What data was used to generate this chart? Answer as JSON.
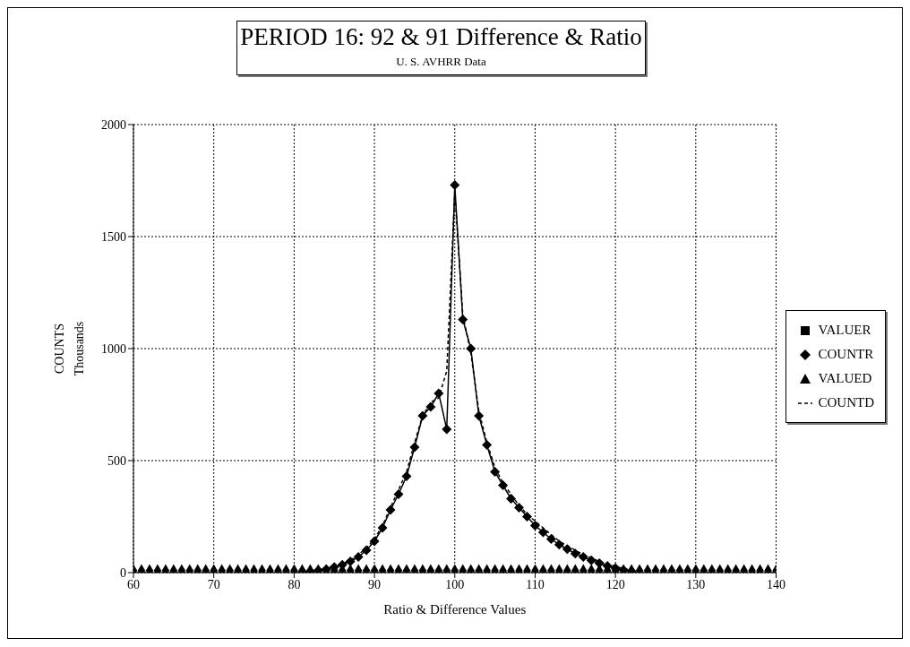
{
  "chart_data": {
    "type": "line",
    "title": "PERIOD 16: 92 & 91 Difference & Ratio",
    "subtitle": "U. S. AVHRR Data",
    "xlabel": "Ratio & Difference Values",
    "ylabel": "COUNTS\nThousands",
    "x": [
      60,
      61,
      62,
      63,
      64,
      65,
      66,
      67,
      68,
      69,
      70,
      71,
      72,
      73,
      74,
      75,
      76,
      77,
      78,
      79,
      80,
      81,
      82,
      83,
      84,
      85,
      86,
      87,
      88,
      89,
      90,
      91,
      92,
      93,
      94,
      95,
      96,
      97,
      98,
      99,
      100,
      101,
      102,
      103,
      104,
      105,
      106,
      107,
      108,
      109,
      110,
      111,
      112,
      113,
      114,
      115,
      116,
      117,
      118,
      119,
      120,
      121,
      122,
      123,
      124,
      125,
      126,
      127,
      128,
      129,
      130,
      131,
      132,
      133,
      134,
      135,
      136,
      137,
      138,
      139,
      140
    ],
    "series": [
      {
        "name": "VALUER",
        "type": "scatter",
        "color": "#000000",
        "marker": "square",
        "values": [
          0,
          0,
          0,
          0,
          0,
          0,
          0,
          0,
          0,
          0,
          0,
          0,
          0,
          0,
          0,
          0,
          0,
          0,
          0,
          0,
          0,
          0,
          null,
          null,
          0,
          0,
          0,
          0,
          0,
          0,
          0,
          0,
          0,
          0,
          0,
          0,
          0,
          0,
          0,
          0,
          0,
          0,
          0,
          0,
          0,
          0,
          0,
          0,
          0,
          0,
          0,
          0,
          0,
          0,
          0,
          0,
          0,
          0,
          0,
          0,
          0,
          0,
          null,
          0,
          0,
          0,
          0,
          0,
          0,
          0,
          0,
          0,
          0,
          0,
          0,
          0,
          0,
          0,
          0,
          0,
          0
        ]
      },
      {
        "name": "COUNTR",
        "color": "#000000",
        "marker": "diamond",
        "line_style": "solid",
        "values": [
          null,
          null,
          null,
          null,
          null,
          null,
          null,
          null,
          null,
          null,
          null,
          null,
          null,
          null,
          null,
          null,
          null,
          null,
          null,
          null,
          null,
          2,
          5,
          10,
          15,
          25,
          35,
          50,
          70,
          100,
          140,
          200,
          280,
          350,
          430,
          560,
          700,
          740,
          800,
          640,
          1730,
          1130,
          1000,
          700,
          570,
          450,
          390,
          330,
          290,
          250,
          210,
          180,
          150,
          125,
          105,
          85,
          70,
          55,
          42,
          30,
          20,
          12,
          6,
          null,
          null,
          null,
          null,
          null,
          null,
          null,
          null,
          null,
          null,
          null,
          null,
          null,
          null,
          null,
          null,
          null,
          null
        ]
      },
      {
        "name": "VALUED",
        "type": "scatter",
        "color": "#000000",
        "marker": "triangle",
        "values": [
          20,
          20,
          20,
          20,
          20,
          20,
          20,
          20,
          20,
          20,
          20,
          20,
          20,
          20,
          20,
          20,
          20,
          20,
          20,
          20,
          20,
          20,
          20,
          20,
          20,
          20,
          20,
          20,
          20,
          20,
          20,
          20,
          20,
          20,
          20,
          20,
          20,
          20,
          20,
          20,
          20,
          20,
          20,
          20,
          20,
          20,
          20,
          20,
          20,
          20,
          20,
          20,
          20,
          20,
          20,
          20,
          20,
          20,
          20,
          20,
          20,
          20,
          20,
          20,
          20,
          20,
          20,
          20,
          20,
          20,
          20,
          20,
          20,
          20,
          20,
          20,
          20,
          20,
          20,
          20,
          20
        ]
      },
      {
        "name": "COUNTD",
        "color": "#000000",
        "marker": "none",
        "line_style": "dashed",
        "values": [
          null,
          null,
          null,
          null,
          null,
          null,
          null,
          null,
          null,
          null,
          null,
          null,
          null,
          null,
          null,
          null,
          null,
          null,
          null,
          null,
          null,
          3,
          6,
          12,
          18,
          28,
          40,
          55,
          80,
          110,
          150,
          210,
          290,
          370,
          450,
          580,
          700,
          760,
          780,
          900,
          1700,
          1150,
          980,
          720,
          580,
          470,
          400,
          350,
          300,
          260,
          230,
          200,
          170,
          140,
          120,
          100,
          80,
          65,
          50,
          38,
          28,
          18,
          10,
          null,
          null,
          null,
          null,
          null,
          null,
          null,
          null,
          null,
          null,
          null,
          null,
          null,
          null,
          null,
          null,
          null,
          null
        ]
      }
    ],
    "xlim": [
      60,
      140
    ],
    "xticks": [
      60,
      70,
      80,
      90,
      100,
      110,
      120,
      130,
      140
    ],
    "ylim": [
      0,
      2000
    ],
    "yticks": [
      0,
      500,
      1000,
      1500,
      2000
    ],
    "grid": true,
    "legend": "right"
  }
}
